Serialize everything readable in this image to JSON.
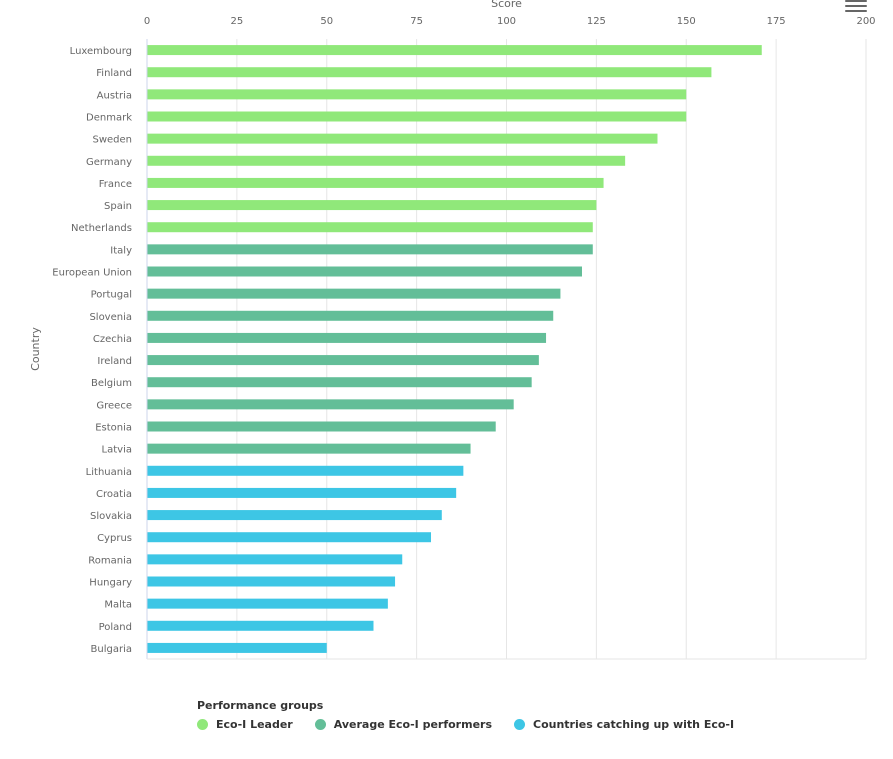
{
  "chart_data": {
    "type": "bar",
    "orientation": "horizontal",
    "xlabel": "Score",
    "ylabel": "Country",
    "xlim": [
      0,
      200
    ],
    "x_ticks": [
      0,
      25,
      50,
      75,
      100,
      125,
      150,
      175,
      200
    ],
    "grid": true,
    "legend_title": "Performance groups",
    "legend_position": "bottom",
    "groups": [
      {
        "name": "Eco-I Leader",
        "color": "#90e87a"
      },
      {
        "name": "Average Eco-I performers",
        "color": "#63be98"
      },
      {
        "name": "Countries catching up with Eco-I",
        "color": "#3dc6e5"
      }
    ],
    "categories": [
      "Luxembourg",
      "Finland",
      "Austria",
      "Denmark",
      "Sweden",
      "Germany",
      "France",
      "Spain",
      "Netherlands",
      "Italy",
      "European Union",
      "Portugal",
      "Slovenia",
      "Czechia",
      "Ireland",
      "Belgium",
      "Greece",
      "Estonia",
      "Latvia",
      "Lithuania",
      "Croatia",
      "Slovakia",
      "Cyprus",
      "Romania",
      "Hungary",
      "Malta",
      "Poland",
      "Bulgaria"
    ],
    "values": [
      171,
      157,
      150,
      150,
      142,
      133,
      127,
      125,
      124,
      124,
      121,
      115,
      113,
      111,
      109,
      107,
      102,
      97,
      90,
      88,
      86,
      82,
      79,
      71,
      69,
      67,
      63,
      50
    ],
    "group_index": [
      0,
      0,
      0,
      0,
      0,
      0,
      0,
      0,
      0,
      1,
      1,
      1,
      1,
      1,
      1,
      1,
      1,
      1,
      1,
      2,
      2,
      2,
      2,
      2,
      2,
      2,
      2,
      2
    ]
  },
  "menu": {
    "icon": "hamburger-menu-icon"
  }
}
